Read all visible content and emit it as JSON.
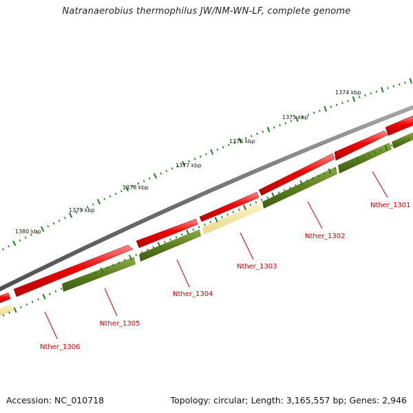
{
  "title": "Natranaerobius thermophilus JW/NM-WN-LF, complete genome",
  "footer": {
    "accession": "Accession: NC_010718",
    "topology": "Topology: circular; Length: 3,165,557 bp; Genes: 2,946"
  },
  "colors": {
    "backbone": "#7b7b7b",
    "cds": "#e30000",
    "cog_green": "#5a7d1c",
    "cog_yellow": "#f0e39a",
    "tick": "#1d7a1d",
    "label": "#cc0000"
  },
  "scale_labels": [
    "1374 kbp",
    "1375 kbp",
    "1376 kbp",
    "1377 kbp",
    "1378 kbp",
    "1379 kbp",
    "1380 kbp"
  ],
  "gene_labels": [
    "Nther_1301",
    "Nther_1302",
    "Nther_1303",
    "Nther_1304",
    "Nther_1305",
    "Nther_1306"
  ]
}
